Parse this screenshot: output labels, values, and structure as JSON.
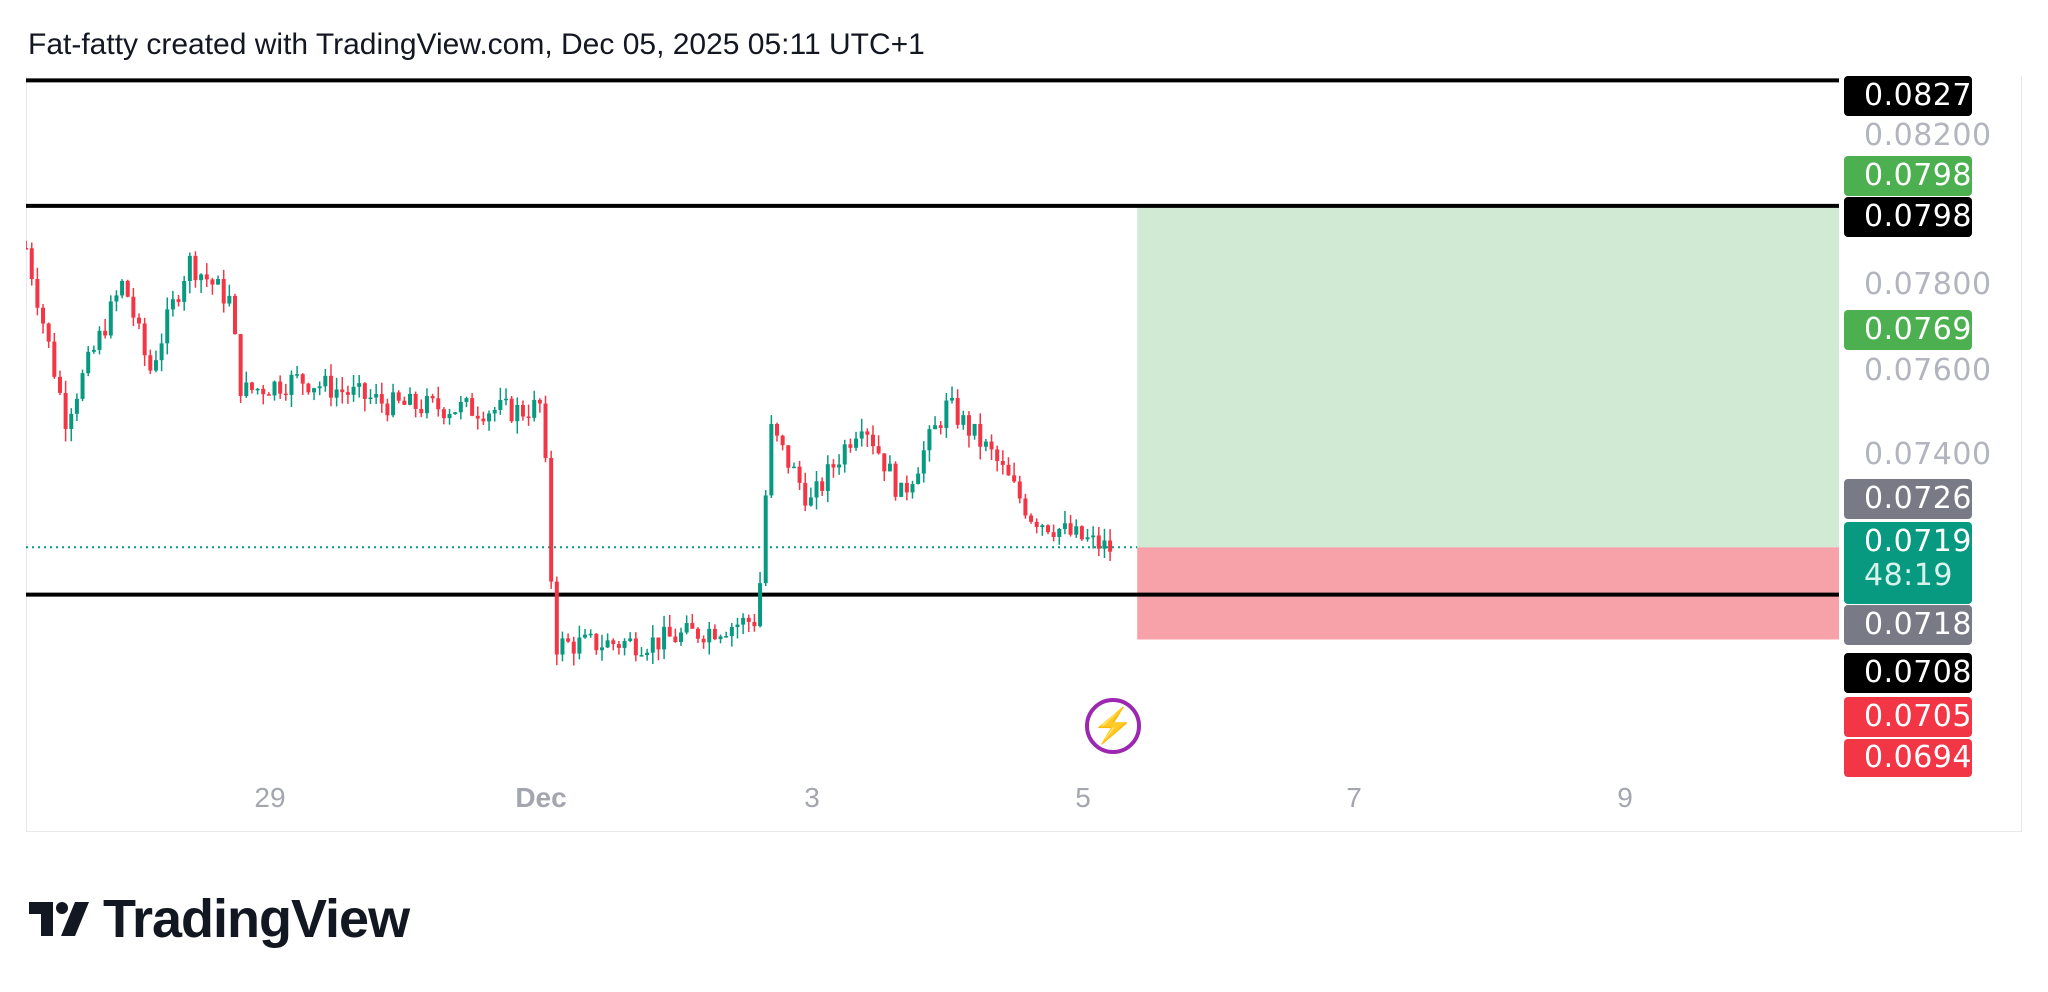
{
  "header": {
    "title": "Fat-fatty created with TradingView.com, Dec 05, 2025 05:11 UTC+1"
  },
  "brand": {
    "logo_text": "TradingView"
  },
  "chart_data": {
    "type": "candlestick",
    "interval": "1h",
    "price_range": [
      0.0688,
      0.0837
    ],
    "y_ticks": [
      "0.08200",
      "0.07800",
      "0.07600",
      "0.07400",
      "0.06946"
    ],
    "x_ticks": [
      {
        "label": "29",
        "day": -2
      },
      {
        "label": "Dec",
        "day": 0,
        "bold": true
      },
      {
        "label": "3",
        "day": 2
      },
      {
        "label": "5",
        "day": 4
      },
      {
        "label": "7",
        "day": 6
      },
      {
        "label": "9",
        "day": 8
      }
    ],
    "price_path": [
      [
        -3.8,
        0.07886
      ],
      [
        -3.51,
        0.07491
      ],
      [
        -3.08,
        0.07809
      ],
      [
        -2.89,
        0.07598
      ],
      [
        -2.6,
        0.07856
      ],
      [
        -2.3,
        0.07765
      ],
      [
        -2.21,
        0.07551
      ],
      [
        -1.78,
        0.07581
      ],
      [
        -1.1,
        0.07521
      ],
      [
        -0.14,
        0.07507
      ],
      [
        0,
        0.0752
      ],
      [
        0.04,
        0.0734
      ],
      [
        0.1,
        0.06963
      ],
      [
        0.83,
        0.0697
      ],
      [
        1.6,
        0.07023
      ],
      [
        1.65,
        0.07281
      ],
      [
        1.7,
        0.0746
      ],
      [
        1.99,
        0.07293
      ],
      [
        2.37,
        0.07491
      ],
      [
        2.66,
        0.07309
      ],
      [
        3.0,
        0.07521
      ],
      [
        3.34,
        0.074
      ],
      [
        3.62,
        0.07263
      ],
      [
        3.91,
        0.07219
      ],
      [
        4.2,
        0.07186
      ]
    ],
    "horizontal_lines": [
      0.08276,
      0.07984,
      0.0708
    ],
    "position": {
      "entry": 0.0719,
      "target": 0.07985,
      "stop": 0.0705,
      "start_day": 4.4,
      "end_day": 9.7
    },
    "last_price": "0.07190",
    "countdown": "48:19",
    "price_labels": [
      {
        "text": "0.08276",
        "color": "#000000"
      },
      {
        "text": "0.07985",
        "color": "#4caf50"
      },
      {
        "text": "0.07984",
        "color": "#000000"
      },
      {
        "text": "0.07694",
        "color": "#4caf50"
      },
      {
        "text": "0.07264",
        "color": "#787b86"
      },
      {
        "text": "0.07186",
        "color": "#787b86"
      },
      {
        "text": "0.07080",
        "color": "#000000"
      },
      {
        "text": "0.07050",
        "color": "#f23645"
      }
    ],
    "colors": {
      "up": "#089981",
      "down": "#f23645",
      "target_zone": "#d0ead3",
      "stop_zone": "#f7a1a8",
      "last": "#089981"
    }
  }
}
